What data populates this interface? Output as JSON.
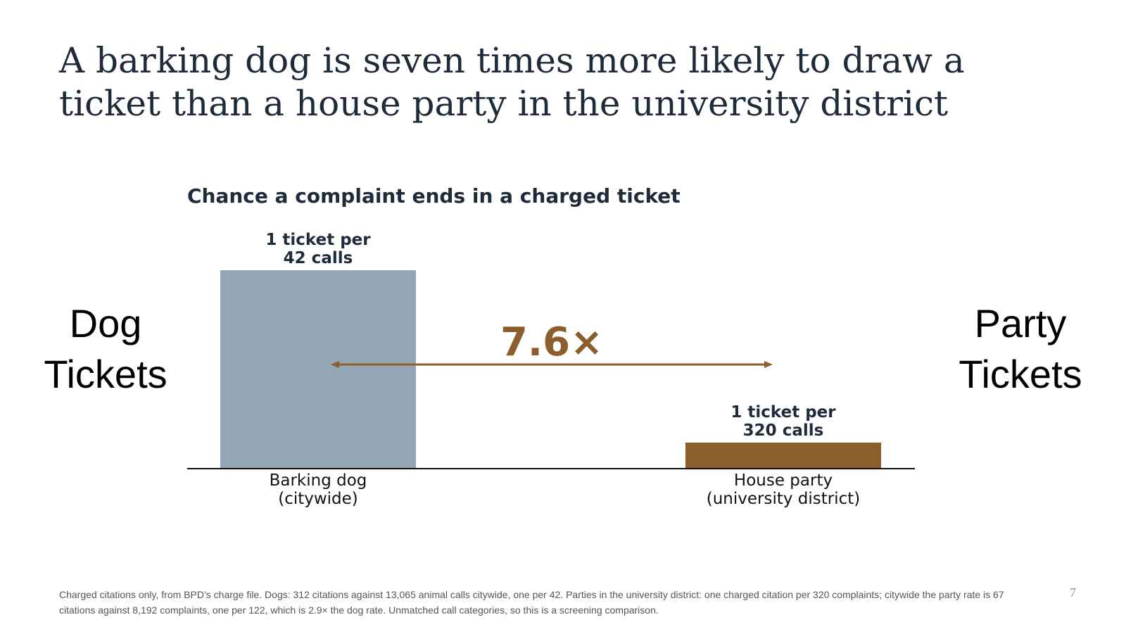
{
  "slide": {
    "title": "A barking dog is seven times more likely to draw a ticket than a house party in the university district",
    "left_label": [
      "Dog",
      "Tickets"
    ],
    "right_label": [
      "Party",
      "Tickets"
    ],
    "footnote": "Charged citations only, from BPD’s charge file. Dogs: 312 citations against 13,065 animal calls citywide, one per 42. Parties in the university district: one charged citation per 320 complaints; citywide the party rate is 67 citations against 8,192 complaints, one per 122, which is 2.9× the dog rate. Unmatched call categories, so this is a screening comparison.",
    "page_number": "7"
  },
  "chart_data": {
    "type": "bar",
    "title": "Chance a complaint ends in a charged ticket",
    "categories": [
      [
        "Barking dog",
        "(citywide)"
      ],
      [
        "House party",
        "(university district)"
      ]
    ],
    "values": [
      0.02381,
      0.003125
    ],
    "value_labels": [
      [
        "1 ticket per",
        "42 calls"
      ],
      [
        "1 ticket per",
        "320 calls"
      ]
    ],
    "colors": [
      "#94a6b5",
      "#8b5e2b"
    ],
    "ratio_annotation": "7.6×",
    "annotation_color": "#8b5e2b",
    "ylim": [
      0,
      0.02381
    ],
    "xlabel": "",
    "ylabel": "",
    "grid": false,
    "legend": "none"
  }
}
